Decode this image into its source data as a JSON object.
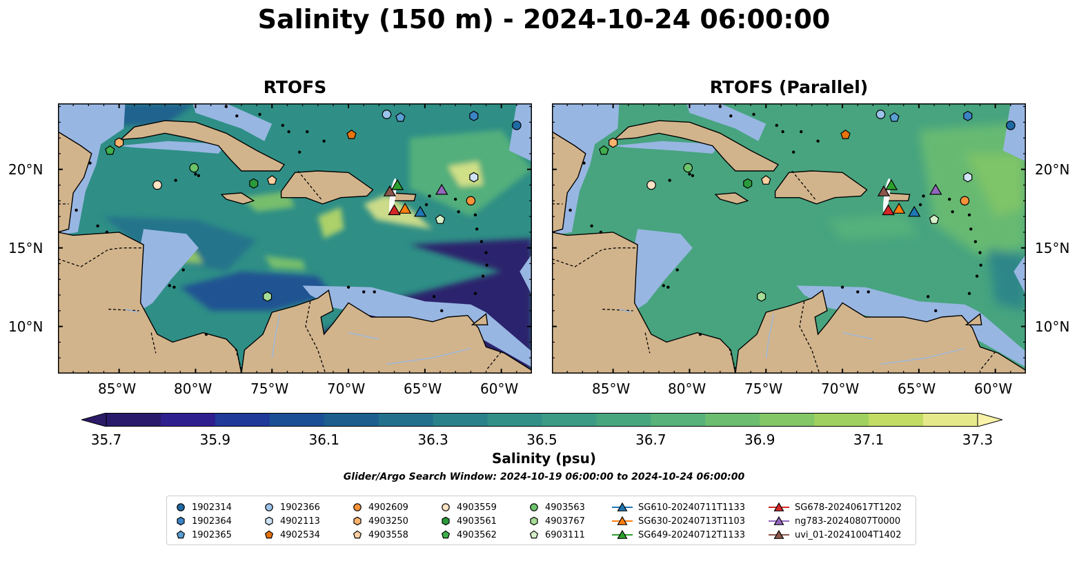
{
  "title": "Salinity (150 m) - 2024-10-24 06:00:00",
  "panels": [
    {
      "title": "RTOFS",
      "variant": "primary"
    },
    {
      "title": "RTOFS (Parallel)",
      "variant": "parallel"
    }
  ],
  "axes": {
    "lon_ticks": [
      "85°W",
      "80°W",
      "75°W",
      "70°W",
      "65°W",
      "60°W"
    ],
    "lat_ticks": [
      "20°N",
      "15°N",
      "10°N"
    ],
    "lon_range": [
      -89,
      -58
    ],
    "lat_range": [
      7,
      24.2
    ]
  },
  "colorbar": {
    "ticks": [
      "35.7",
      "35.9",
      "36.1",
      "36.3",
      "36.5",
      "36.7",
      "36.9",
      "37.1",
      "37.3"
    ],
    "range": [
      35.7,
      37.3
    ],
    "label": "Salinity (psu)",
    "colors": [
      "#2a1a6b",
      "#2e1f8e",
      "#203a99",
      "#1b4f95",
      "#1d5e8f",
      "#23708c",
      "#2a818a",
      "#318f87",
      "#3b9b84",
      "#48a67f",
      "#58b27a",
      "#6cbd70",
      "#84c767",
      "#a0d160",
      "#c2dc64",
      "#e6e98a"
    ],
    "extend_low_color": "#2b1a66",
    "extend_high_color": "#f8f3a8"
  },
  "search_window": "Glider/Argo Search Window: 2024-10-19 06:00:00 to 2024-10-24 06:00:00",
  "colors": {
    "land": "#d2b48c",
    "shelf": "#98b6e2",
    "deep_primary": "#2a1a6b",
    "ocean_primary": "#2f8f86",
    "ocean_parallel": "#47a47f"
  },
  "legend": [
    {
      "label": "1902314",
      "marker": "circle",
      "color": "#1f6aa5"
    },
    {
      "label": "1902364",
      "marker": "hexagon",
      "color": "#3b83c4"
    },
    {
      "label": "1902365",
      "marker": "pentagon",
      "color": "#5a9fd4"
    },
    {
      "label": "1902366",
      "marker": "circle",
      "color": "#9cc3ea"
    },
    {
      "label": "4902113",
      "marker": "hexagon",
      "color": "#cfe3f6"
    },
    {
      "label": "4902534",
      "marker": "pentagon",
      "color": "#e6730e"
    },
    {
      "label": "4902609",
      "marker": "circle",
      "color": "#f7923a"
    },
    {
      "label": "4903250",
      "marker": "hexagon",
      "color": "#fbb36e"
    },
    {
      "label": "4903558",
      "marker": "pentagon",
      "color": "#fdd0a2"
    },
    {
      "label": "4903559",
      "marker": "circle",
      "color": "#fde2c4"
    },
    {
      "label": "4903561",
      "marker": "hexagon",
      "color": "#2a9a3a"
    },
    {
      "label": "4903562",
      "marker": "pentagon",
      "color": "#3fae4c"
    },
    {
      "label": "4903563",
      "marker": "circle",
      "color": "#6cc36a"
    },
    {
      "label": "4903767",
      "marker": "hexagon",
      "color": "#a6dd96"
    },
    {
      "label": "6903111",
      "marker": "pentagon",
      "color": "#d5f0c8"
    },
    {
      "label": "SG610-20240711T1133",
      "marker": "triangle",
      "color": "#1f77b4"
    },
    {
      "label": "SG630-20240713T1103",
      "marker": "triangle",
      "color": "#ff7f0e"
    },
    {
      "label": "SG649-20240712T1133",
      "marker": "triangle",
      "color": "#2ca02c"
    },
    {
      "label": "SG678-20240617T1202",
      "marker": "triangle",
      "color": "#d62728"
    },
    {
      "label": "ng783-20240807T0000",
      "marker": "triangle",
      "color": "#9467bd"
    },
    {
      "label": "uvi_01-20241004T1402",
      "marker": "triangle",
      "color": "#8c564b"
    }
  ],
  "stations": [
    {
      "label": "1902314",
      "lon": -59.0,
      "lat": 22.8
    },
    {
      "label": "1902364",
      "lon": -61.8,
      "lat": 23.4
    },
    {
      "label": "1902365",
      "lon": -66.6,
      "lat": 23.3
    },
    {
      "label": "1902366",
      "lon": -67.5,
      "lat": 23.5
    },
    {
      "label": "4902113",
      "lon": -61.8,
      "lat": 19.5
    },
    {
      "label": "4902534",
      "lon": -69.8,
      "lat": 22.2
    },
    {
      "label": "4902609",
      "lon": -62.0,
      "lat": 18.0
    },
    {
      "label": "4903250",
      "lon": -85.0,
      "lat": 21.7
    },
    {
      "label": "4903558",
      "lon": -75.0,
      "lat": 19.3
    },
    {
      "label": "4903559",
      "lon": -82.5,
      "lat": 19.0
    },
    {
      "label": "4903561",
      "lon": -76.2,
      "lat": 19.1
    },
    {
      "label": "4903562",
      "lon": -85.6,
      "lat": 21.2
    },
    {
      "label": "4903563",
      "lon": -80.1,
      "lat": 20.1
    },
    {
      "label": "4903767",
      "lon": -75.3,
      "lat": 11.9
    },
    {
      "label": "6903111",
      "lon": -64.0,
      "lat": 16.8
    },
    {
      "label": "SG610-20240711T1133",
      "lon": -65.3,
      "lat": 17.3
    },
    {
      "label": "SG630-20240713T1103",
      "lon": -66.3,
      "lat": 17.5
    },
    {
      "label": "SG649-20240712T1133",
      "lon": -66.8,
      "lat": 19.0
    },
    {
      "label": "SG678-20240617T1202",
      "lon": -67.0,
      "lat": 17.4
    },
    {
      "label": "ng783-20240807T0000",
      "lon": -63.9,
      "lat": 18.7
    },
    {
      "label": "uvi_01-20241004T1402",
      "lon": -67.3,
      "lat": 18.6
    }
  ]
}
